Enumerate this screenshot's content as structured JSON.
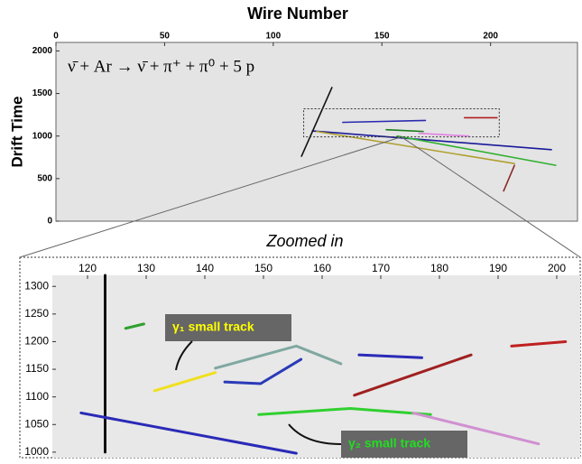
{
  "chart_data": [
    {
      "type": "line",
      "title": "Wire Number",
      "y_label": "Drift Time",
      "annotation": "ν̄ + Ar → ν̄ + π⁺ + π⁰ + 5 p",
      "xlim": [
        0,
        240
      ],
      "xticks": [
        0,
        50,
        100,
        150,
        200
      ],
      "ylim": [
        0,
        2100
      ],
      "yticks": [
        0,
        500,
        1000,
        1500,
        2000
      ],
      "series": [
        {
          "color": "#1a1a9a",
          "x": [
            118,
            228
          ],
          "values": [
            1060,
            840
          ]
        },
        {
          "color": "#b0a030",
          "x": [
            120,
            211
          ],
          "values": [
            1054,
            677
          ]
        },
        {
          "color": "#30b030",
          "x": [
            157,
            230
          ],
          "values": [
            1000,
            656
          ]
        },
        {
          "color": "#111111",
          "x": [
            113,
            127
          ],
          "values": [
            763,
            1570
          ]
        },
        {
          "color": "#8a2a2a",
          "x": [
            211,
            206
          ],
          "values": [
            656,
            355
          ]
        },
        {
          "color": "#2a2ab0",
          "x": [
            132,
            170
          ],
          "values": [
            1161,
            1183
          ]
        },
        {
          "color": "#e080e0",
          "x": [
            167,
            190
          ],
          "values": [
            1032,
            1000
          ]
        },
        {
          "color": "#b02020",
          "x": [
            188,
            203
          ],
          "values": [
            1215,
            1215
          ]
        },
        {
          "color": "#1a7a1a",
          "x": [
            152,
            169
          ],
          "values": [
            1075,
            1054
          ]
        }
      ]
    },
    {
      "type": "line",
      "title": "Zoomed in",
      "annotations": [
        {
          "text": "γ₁ small track",
          "color": "#ffff00"
        },
        {
          "text": "γ₂ small track",
          "color": "#22dd22"
        }
      ],
      "xlim": [
        114,
        204
      ],
      "xticks": [
        120,
        130,
        140,
        150,
        160,
        170,
        180,
        190,
        200
      ],
      "ylim": [
        990,
        1320
      ],
      "yticks": [
        1000,
        1050,
        1100,
        1150,
        1200,
        1250,
        1300
      ],
      "series": [
        {
          "color": "#111111",
          "x": [
            123,
            123
          ],
          "values": [
            1000,
            1320
          ]
        },
        {
          "color": "#2a2ab8",
          "x": [
            118.9,
            155.6
          ],
          "values": [
            1071,
            998
          ]
        },
        {
          "color": "#f0e020",
          "x": [
            131.4,
            141.8
          ],
          "values": [
            1111,
            1144
          ]
        },
        {
          "color": "#30d030",
          "x": [
            149.2,
            164.8,
            178.5
          ],
          "values": [
            1068,
            1079,
            1068
          ]
        },
        {
          "color": "#a02020",
          "x": [
            165.5,
            185.4
          ],
          "values": [
            1103,
            1176
          ]
        },
        {
          "color": "#c02020",
          "x": [
            192.3,
            201.5
          ],
          "values": [
            1192,
            1200
          ]
        },
        {
          "color": "#80a8a0",
          "x": [
            141.8,
            155.6,
            163.2
          ],
          "values": [
            1152,
            1192,
            1160
          ]
        },
        {
          "color": "#2a3ab8",
          "x": [
            143.4,
            149.5,
            156.4
          ],
          "values": [
            1127,
            1124,
            1168
          ]
        },
        {
          "color": "#d090d0",
          "x": [
            175.5,
            196.9
          ],
          "values": [
            1071,
            1015
          ]
        },
        {
          "color": "#30a030",
          "x": [
            126.5,
            129.6
          ],
          "values": [
            1224,
            1232
          ]
        },
        {
          "color": "#2a2ab8",
          "x": [
            166.3,
            177
          ],
          "values": [
            1176,
            1171
          ]
        }
      ]
    }
  ]
}
